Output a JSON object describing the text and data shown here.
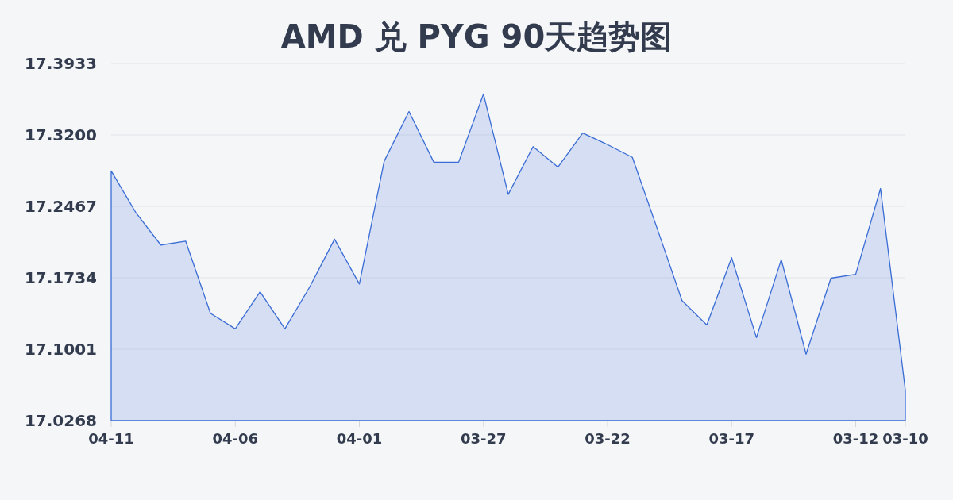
{
  "chart_data": {
    "type": "area",
    "title": "AMD 兑 PYG 90天趋势图",
    "categories": [
      "04-11",
      null,
      null,
      null,
      null,
      "04-06",
      null,
      null,
      null,
      null,
      "04-01",
      null,
      null,
      null,
      null,
      "03-27",
      null,
      null,
      null,
      null,
      "03-22",
      null,
      null,
      null,
      null,
      "03-17",
      null,
      null,
      null,
      null,
      "03-12",
      null,
      "03-10"
    ],
    "values": [
      17.283,
      17.24,
      17.207,
      17.211,
      17.137,
      17.121,
      17.159,
      17.121,
      17.164,
      17.213,
      17.167,
      17.293,
      17.344,
      17.292,
      17.292,
      17.362,
      17.259,
      17.308,
      17.287,
      17.322,
      17.31,
      17.297,
      17.224,
      17.15,
      17.125,
      17.194,
      17.112,
      17.192,
      17.095,
      17.173,
      17.177,
      17.265,
      17.058
    ],
    "color": "#3a6cd6",
    "ylim": [
      17.0268,
      17.3933
    ],
    "yticks": [
      17.0268,
      17.1001,
      17.1734,
      17.2467,
      {
        "value": 17.32,
        "label": "17.3200"
      },
      17.3933
    ],
    "grid": "y"
  }
}
